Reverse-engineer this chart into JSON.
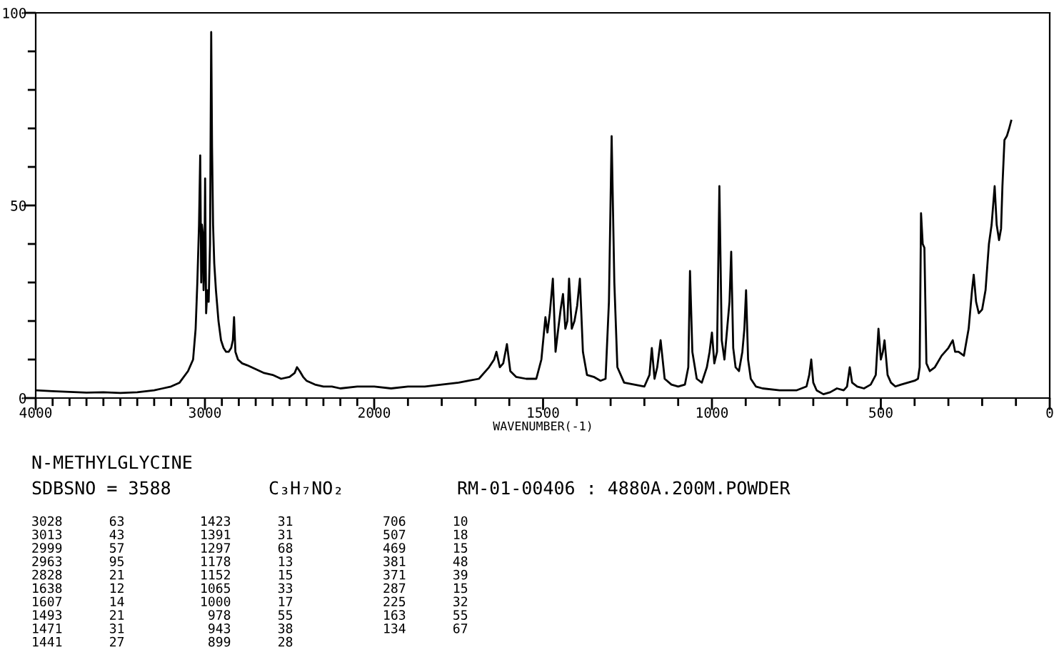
{
  "chart_data": [
    {
      "type": "line",
      "x": [
        4000,
        3900,
        3800,
        3700,
        3600,
        3500,
        3400,
        3300,
        3250,
        3200,
        3150,
        3100,
        3070,
        3055,
        3045,
        3035,
        3028,
        3022,
        3018,
        3013,
        3008,
        3003,
        2999,
        2993,
        2986,
        2978,
        2970,
        2963,
        2958,
        2952,
        2945,
        2935,
        2920,
        2905,
        2890,
        2875,
        2860,
        2845,
        2835,
        2828,
        2820,
        2805,
        2780,
        2750,
        2700,
        2650,
        2600,
        2550,
        2500,
        2470,
        2456,
        2440,
        2420,
        2400,
        2350,
        2300,
        2250,
        2200,
        2100,
        2000
      ],
      "values": [
        2,
        1.8,
        1.6,
        1.4,
        1.5,
        1.3,
        1.5,
        2,
        2.5,
        3,
        4,
        7,
        10,
        18,
        30,
        45,
        63,
        30,
        45,
        43,
        28,
        35,
        57,
        22,
        28,
        25,
        40,
        95,
        65,
        45,
        35,
        28,
        20,
        15,
        13,
        12,
        12,
        13,
        15,
        21,
        12,
        10,
        9,
        8.5,
        7.5,
        6.5,
        6,
        5,
        5.5,
        6.5,
        8,
        7,
        5.5,
        4.5,
        3.5,
        3,
        3,
        2.5,
        3,
        3
      ],
      "xlim": [
        4000,
        2000
      ],
      "xticks": [
        4000,
        {
          "value": 3900,
          "label": null
        },
        {
          "value": 3800,
          "label": null
        },
        {
          "value": 3700,
          "label": null
        },
        {
          "value": 3600,
          "label": null
        },
        {
          "value": 3500,
          "label": null
        },
        {
          "value": 3400,
          "label": null
        },
        {
          "value": 3300,
          "label": null
        },
        {
          "value": 3200,
          "label": null
        },
        {
          "value": 3100,
          "label": null
        },
        3000,
        {
          "value": 2900,
          "label": null
        },
        {
          "value": 2800,
          "label": null
        },
        {
          "value": 2700,
          "label": null
        },
        {
          "value": 2600,
          "label": null
        },
        {
          "value": 2500,
          "label": null
        },
        {
          "value": 2400,
          "label": null
        },
        {
          "value": 2300,
          "label": null
        },
        {
          "value": 2200,
          "label": null
        },
        {
          "value": 2100,
          "label": null
        }
      ],
      "ylim": [
        0,
        100
      ],
      "yticks": [
        0,
        {
          "value": 10,
          "label": null
        },
        {
          "value": 20,
          "label": null
        },
        {
          "value": 30,
          "label": null
        },
        {
          "value": 40,
          "label": null
        },
        50,
        {
          "value": 60,
          "label": null
        },
        {
          "value": 70,
          "label": null
        },
        {
          "value": 80,
          "label": null
        },
        {
          "value": 90,
          "label": null
        },
        100
      ],
      "color": "#000000",
      "grid": false,
      "annotations": [
        "N-METHYLGLYCINE",
        "SDBSNO = 3588",
        "C₃H₇NO₂",
        "RM-01-00406 : 4880A.200M.POWDER",
        "3028      63",
        "3013      43",
        "2999      57",
        "2963      95",
        "2828      21",
        "1638      12",
        "1607      14",
        "1493      21",
        "1471      31",
        "1441      27",
        "1423      31",
        "1391      31",
        "1297      68",
        "1178      13",
        "1152      15",
        "1065      33",
        "1000      17",
        " 978      55",
        " 943      38",
        " 899      28",
        "706      10",
        "507      18",
        "469      15",
        "381      48",
        "371      39",
        "287      15",
        "225      32",
        "163      55",
        "134      67"
      ]
    },
    {
      "type": "line",
      "xlabel": "WAVENUMBER(-1)",
      "x": [
        2000,
        1950,
        1900,
        1850,
        1800,
        1750,
        1720,
        1690,
        1660,
        1645,
        1638,
        1628,
        1618,
        1607,
        1597,
        1580,
        1550,
        1520,
        1505,
        1493,
        1487,
        1480,
        1471,
        1463,
        1455,
        1448,
        1441,
        1434,
        1428,
        1423,
        1415,
        1407,
        1399,
        1391,
        1382,
        1370,
        1350,
        1330,
        1315,
        1305,
        1297,
        1289,
        1280,
        1260,
        1230,
        1200,
        1185,
        1178,
        1170,
        1162,
        1152,
        1140,
        1120,
        1100,
        1080,
        1070,
        1065,
        1058,
        1045,
        1030,
        1015,
        1007,
        1000,
        993,
        985,
        978,
        971,
        963,
        955,
        948,
        943,
        937,
        930,
        920,
        910,
        904,
        899,
        893,
        885,
        870,
        850,
        800,
        750,
        720,
        712,
        706,
        700,
        690,
        670,
        650,
        630,
        610,
        600,
        592,
        585,
        570,
        550,
        530,
        515,
        507,
        500,
        494,
        489,
        480,
        470,
        457,
        440,
        420,
        400,
        390,
        385,
        381,
        376,
        371,
        365,
        355,
        340,
        320,
        300,
        287,
        280,
        270,
        254,
        240,
        230,
        225,
        218,
        210,
        200,
        190,
        180,
        172,
        163,
        157,
        150,
        144,
        140,
        134,
        127,
        120,
        114
      ],
      "values": [
        3,
        2.5,
        3,
        3,
        3.5,
        4,
        4.5,
        5,
        8,
        10,
        12,
        8,
        9,
        14,
        7,
        5.5,
        5,
        5,
        10,
        21,
        17,
        22,
        31,
        12,
        18,
        23,
        27,
        18,
        20,
        31,
        18,
        20,
        24,
        31,
        12,
        6,
        5.5,
        4.5,
        5,
        25,
        68,
        30,
        8,
        4,
        3.5,
        3,
        6,
        13,
        5,
        8,
        15,
        5,
        3.5,
        3,
        3.5,
        8,
        33,
        12,
        5,
        4,
        8,
        12,
        17,
        9,
        12,
        55,
        15,
        10,
        18,
        25,
        38,
        13,
        8,
        7,
        12,
        18,
        28,
        10,
        5,
        3,
        2.5,
        2,
        2,
        3,
        6,
        10,
        4,
        2,
        1,
        1.5,
        2.5,
        2,
        3,
        8,
        4,
        3,
        2.5,
        3.5,
        6,
        18,
        10,
        12,
        15,
        6,
        4,
        3,
        3.5,
        4,
        4.5,
        5,
        8,
        48,
        40,
        39,
        9,
        7,
        8,
        11,
        13,
        15,
        12,
        12,
        11,
        18,
        28,
        32,
        25,
        22,
        23,
        28,
        40,
        45,
        55,
        45,
        41,
        44,
        55,
        67,
        68,
        70,
        72
      ],
      "xlim": [
        2000,
        0
      ],
      "xticks": [
        2000,
        {
          "value": 1900,
          "label": null
        },
        {
          "value": 1800,
          "label": null
        },
        {
          "value": 1700,
          "label": null
        },
        {
          "value": 1600,
          "label": null
        },
        1500,
        {
          "value": 1400,
          "label": null
        },
        {
          "value": 1300,
          "label": null
        },
        {
          "value": 1200,
          "label": null
        },
        {
          "value": 1100,
          "label": null
        },
        1000,
        {
          "value": 900,
          "label": null
        },
        {
          "value": 800,
          "label": null
        },
        {
          "value": 700,
          "label": null
        },
        {
          "value": 600,
          "label": null
        },
        500,
        {
          "value": 400,
          "label": null
        },
        {
          "value": 300,
          "label": null
        },
        {
          "value": 200,
          "label": null
        },
        {
          "value": 100,
          "label": null
        },
        0
      ],
      "ylim": [
        0,
        100
      ],
      "tick_labels": "x",
      "color": "#000000",
      "grid": false
    }
  ]
}
